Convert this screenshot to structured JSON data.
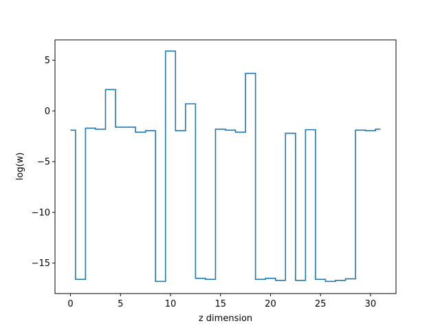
{
  "chart_data": {
    "type": "line",
    "style": "step-mid",
    "title": "",
    "xlabel": "z dimension",
    "ylabel": "log(w)",
    "xlim": [
      -1.55,
      32.55
    ],
    "ylim": [
      -18.0,
      7.0
    ],
    "xticks": [
      0,
      5,
      10,
      15,
      20,
      25,
      30
    ],
    "yticks": [
      5,
      0,
      -5,
      -10,
      -15
    ],
    "ytick_labels": [
      "5",
      "0",
      "−5",
      "−10",
      "−15"
    ],
    "grid": false,
    "legend": false,
    "series": [
      {
        "color": "#1f77b4",
        "x": [
          0,
          1,
          2,
          3,
          4,
          5,
          6,
          7,
          8,
          9,
          10,
          11,
          12,
          13,
          14,
          15,
          16,
          17,
          18,
          19,
          20,
          21,
          22,
          23,
          24,
          25,
          26,
          27,
          28,
          29,
          30,
          31
        ],
        "values": [
          -1.9,
          -16.6,
          -1.7,
          -1.8,
          2.1,
          -1.6,
          -1.6,
          -2.1,
          -1.95,
          -16.8,
          5.9,
          -1.95,
          0.7,
          -16.5,
          -16.6,
          -1.8,
          -1.9,
          -2.1,
          3.7,
          -16.6,
          -16.5,
          -16.7,
          -2.2,
          -16.7,
          -1.85,
          -16.6,
          -16.8,
          -16.7,
          -16.55,
          -1.9,
          -1.95,
          -1.8
        ]
      }
    ]
  }
}
